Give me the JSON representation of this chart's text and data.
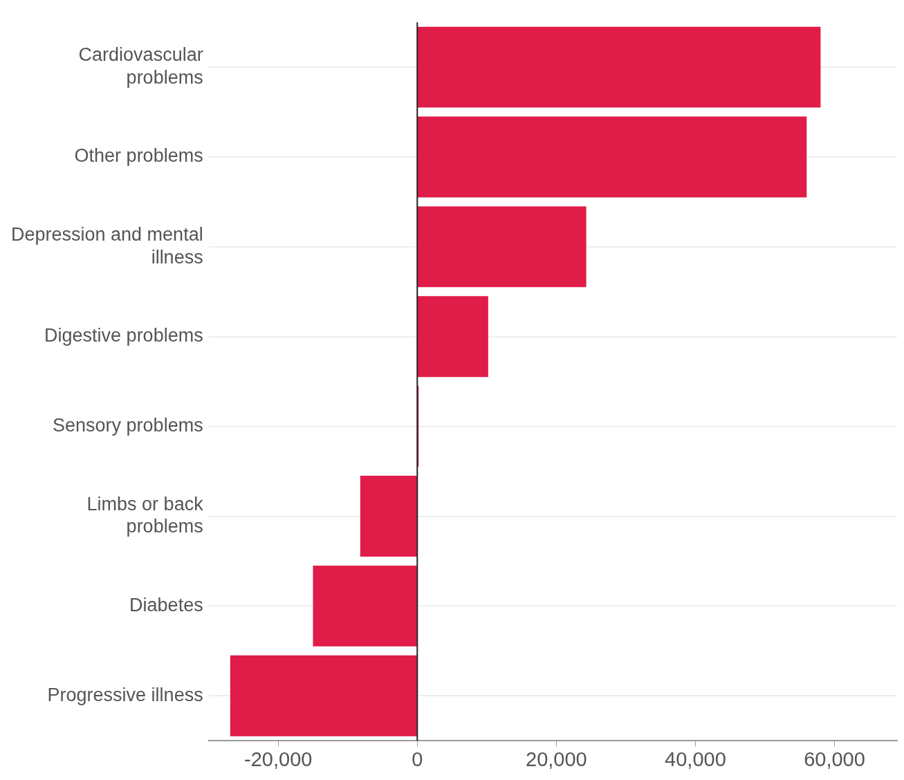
{
  "chart_data": {
    "type": "bar",
    "orientation": "horizontal",
    "categories": [
      "Cardiovascular problems",
      "Other problems",
      "Depression and mental illness",
      "Digestive problems",
      "Sensory problems",
      "Limbs or back problems",
      "Diabetes",
      "Progressive illness"
    ],
    "values": [
      58000,
      56000,
      24300,
      10200,
      200,
      -8200,
      -15000,
      -26900
    ],
    "color": "#e01c48",
    "xlim": [
      -30000,
      69000
    ],
    "xticks": [
      {
        "value": -20000,
        "label": "-20,000"
      },
      0,
      {
        "value": 20000,
        "label": "20,000"
      },
      {
        "value": 40000,
        "label": "40,000"
      },
      {
        "value": 60000,
        "label": "60,000"
      }
    ],
    "ref_lines": [
      {
        "axis": "x",
        "value": 0,
        "color": "#222222"
      }
    ],
    "grid": "y",
    "legend": false
  }
}
